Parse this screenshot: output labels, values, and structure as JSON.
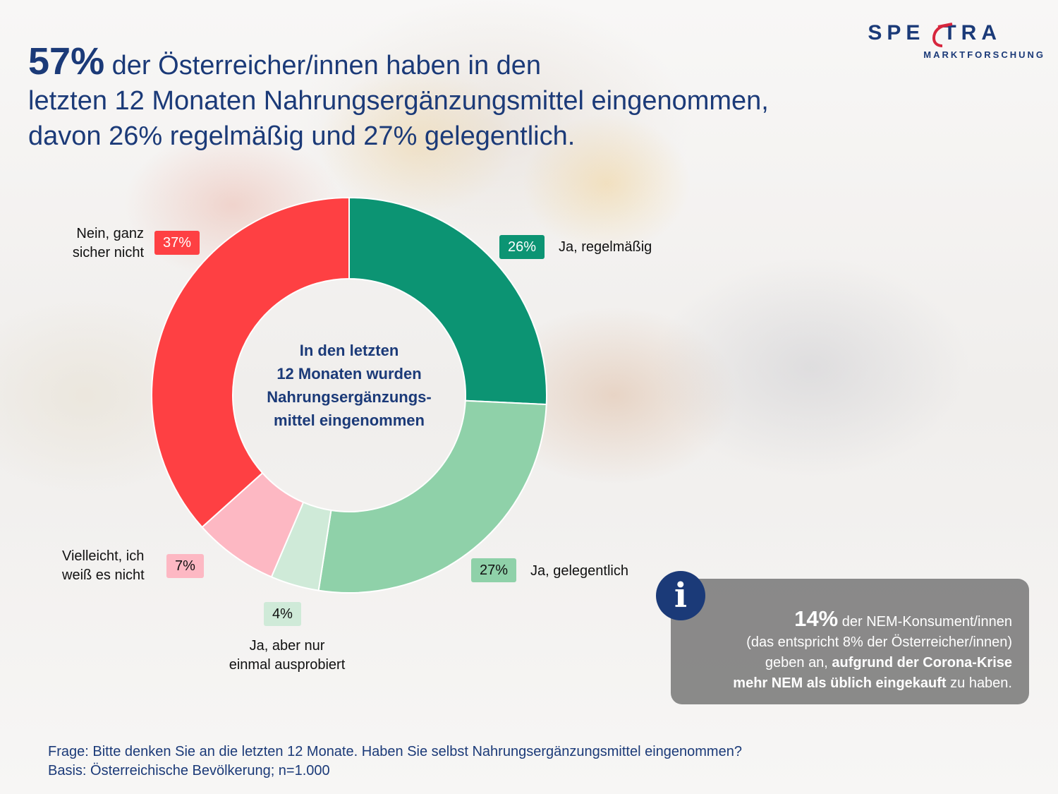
{
  "title": {
    "highlight": "57%",
    "line1_rest": " der Österreicher/innen haben in den",
    "line2": "letzten 12 Monaten Nahrungsergänzungsmittel eingenommen,",
    "line3": "davon 26% regelmäßig und 27% gelegentlich."
  },
  "logo": {
    "word_left": "SPE",
    "word_right": "TRA",
    "subtitle": "MARKTFORSCHUNG",
    "accent_color": "#d7263d",
    "brand_color": "#1b3a78"
  },
  "chart_data": {
    "type": "pie",
    "donut": true,
    "center_label": [
      "In den letzten",
      "12 Monaten wurden",
      "Nahrungsergänzungs-",
      "mittel eingenommen"
    ],
    "slices": [
      {
        "label_lines": [
          "Ja, regelmäßig"
        ],
        "value": 26,
        "value_label": "26%",
        "color": "#0c9473",
        "badge_text_color": "#ffffff"
      },
      {
        "label_lines": [
          "Ja, gelegentlich"
        ],
        "value": 27,
        "value_label": "27%",
        "color": "#8fd1a9",
        "badge_text_color": "#111111"
      },
      {
        "label_lines": [
          "Ja, aber nur",
          "einmal ausprobiert"
        ],
        "value": 4,
        "value_label": "4%",
        "color": "#cfead8",
        "badge_text_color": "#111111"
      },
      {
        "label_lines": [
          "Vielleicht, ich",
          "weiß es nicht"
        ],
        "value": 7,
        "value_label": "7%",
        "color": "#fdb8c3",
        "badge_text_color": "#111111"
      },
      {
        "label_lines": [
          "Nein, ganz",
          "sicher nicht"
        ],
        "value": 37,
        "value_label": "37%",
        "color": "#fe4043",
        "badge_text_color": "#ffffff"
      }
    ]
  },
  "info": {
    "icon": "info-icon",
    "highlight": "14%",
    "part1": " der NEM-Konsument/innen",
    "part2": "(das entspricht 8% der Österreicher/innen)",
    "part3": "geben an, ",
    "bold1": "aufgrund der Corona-Krise",
    "bold2": "mehr NEM als üblich eingekauft",
    "part4": " zu haben."
  },
  "footer": {
    "question": "Frage: Bitte denken Sie an die letzten 12 Monate. Haben Sie selbst Nahrungsergänzungsmittel eingenommen?",
    "base": "Basis: Österreichische Bevölkerung; n=1.000"
  }
}
